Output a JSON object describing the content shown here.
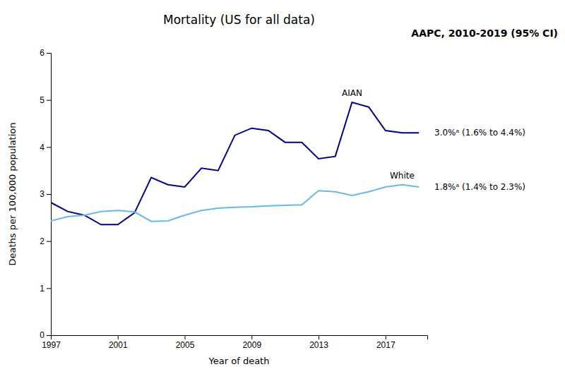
{
  "chart_data": {
    "type": "line",
    "title": "Mortality (US for all data)",
    "subtitle": "AAPC, 2010-2019 (95% CI)",
    "xlabel": "Year of death",
    "ylabel": "Deaths per 100,000 population",
    "x": [
      1997,
      1998,
      1999,
      2000,
      2001,
      2002,
      2003,
      2004,
      2005,
      2006,
      2007,
      2008,
      2009,
      2010,
      2011,
      2012,
      2013,
      2014,
      2015,
      2016,
      2017,
      2018,
      2019
    ],
    "series": [
      {
        "name": "AIAN",
        "color": "#00008B",
        "values": [
          2.82,
          2.63,
          2.55,
          2.35,
          2.35,
          2.6,
          3.35,
          3.2,
          3.15,
          3.55,
          3.5,
          4.25,
          4.4,
          4.35,
          4.1,
          4.1,
          3.75,
          3.8,
          4.95,
          4.85,
          4.35,
          4.3,
          4.3
        ]
      },
      {
        "name": "White",
        "color": "#6BB8E8",
        "values": [
          2.43,
          2.52,
          2.55,
          2.63,
          2.65,
          2.62,
          2.42,
          2.43,
          2.55,
          2.65,
          2.7,
          2.72,
          2.73,
          2.75,
          2.76,
          2.77,
          3.07,
          3.05,
          2.97,
          3.05,
          3.15,
          3.2,
          3.15
        ]
      }
    ],
    "annotations": [
      "3.0%ᵃ (1.6% to 4.4%)",
      "1.8%ᵃ (1.4% to 2.3%)"
    ],
    "xlim": [
      1997,
      2019.5
    ],
    "xticks": [
      1997,
      2001,
      2005,
      2009,
      2013,
      2017
    ],
    "ylim": [
      0,
      6
    ],
    "yticks": [
      0,
      1,
      2,
      3,
      4,
      5,
      6
    ]
  }
}
